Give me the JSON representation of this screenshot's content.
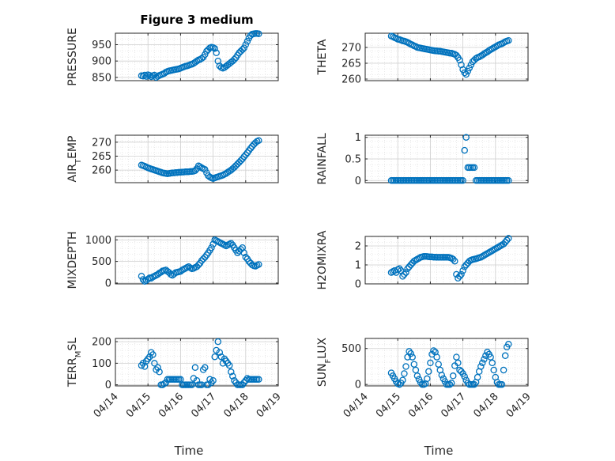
{
  "figure": {
    "title": "Figure 3 medium",
    "marker_color": "#0072bd",
    "x_tick_labels": [
      "04/14",
      "04/15",
      "04/16",
      "04/17",
      "04/18",
      "04/19"
    ]
  },
  "chart_data": [
    {
      "type": "scatter",
      "ylabel": "PRESSURE",
      "xlim": [
        0,
        5
      ],
      "ylim": [
        840,
        985
      ],
      "yticks": [
        850,
        900,
        950
      ],
      "grid": true,
      "x": [
        0.8,
        0.85,
        0.9,
        0.95,
        1.0,
        1.05,
        1.1,
        1.15,
        1.2,
        1.25,
        1.3,
        1.35,
        1.4,
        1.45,
        1.5,
        1.55,
        1.6,
        1.65,
        1.7,
        1.75,
        1.8,
        1.85,
        1.9,
        1.95,
        2.0,
        2.05,
        2.1,
        2.15,
        2.2,
        2.25,
        2.3,
        2.35,
        2.4,
        2.45,
        2.5,
        2.55,
        2.6,
        2.65,
        2.7,
        2.75,
        2.8,
        2.85,
        2.9,
        2.95,
        3.0,
        3.05,
        3.1,
        3.15,
        3.2,
        3.25,
        3.3,
        3.35,
        3.4,
        3.45,
        3.5,
        3.55,
        3.6,
        3.65,
        3.7,
        3.75,
        3.8,
        3.85,
        3.9,
        3.95,
        4.0,
        4.05,
        4.1,
        4.15,
        4.2,
        4.25,
        4.3,
        4.35,
        4.4
      ],
      "y": [
        855,
        854,
        857,
        853,
        858,
        856,
        852,
        855,
        857,
        850,
        853,
        856,
        858,
        860,
        862,
        866,
        868,
        870,
        871,
        872,
        873,
        874,
        875,
        876,
        878,
        880,
        882,
        884,
        885,
        887,
        889,
        890,
        893,
        896,
        900,
        903,
        905,
        908,
        912,
        920,
        930,
        935,
        940,
        942,
        941,
        938,
        925,
        900,
        885,
        880,
        878,
        880,
        884,
        888,
        892,
        896,
        900,
        905,
        910,
        918,
        925,
        930,
        935,
        940,
        950,
        960,
        970,
        978,
        982,
        983,
        984,
        984,
        983
      ]
    },
    {
      "type": "scatter",
      "ylabel": "THETA",
      "xlim": [
        0,
        5
      ],
      "ylim": [
        259.5,
        274.5
      ],
      "yticks": [
        260,
        265,
        270
      ],
      "grid": true,
      "x": [
        0.8,
        0.85,
        0.9,
        0.95,
        1.0,
        1.05,
        1.1,
        1.15,
        1.2,
        1.25,
        1.3,
        1.35,
        1.4,
        1.45,
        1.5,
        1.55,
        1.6,
        1.65,
        1.7,
        1.75,
        1.8,
        1.85,
        1.9,
        1.95,
        2.0,
        2.05,
        2.1,
        2.15,
        2.2,
        2.25,
        2.3,
        2.35,
        2.4,
        2.45,
        2.5,
        2.55,
        2.6,
        2.65,
        2.7,
        2.75,
        2.8,
        2.85,
        2.9,
        2.95,
        3.0,
        3.05,
        3.1,
        3.15,
        3.2,
        3.25,
        3.3,
        3.35,
        3.4,
        3.45,
        3.5,
        3.55,
        3.6,
        3.65,
        3.7,
        3.75,
        3.8,
        3.85,
        3.9,
        3.95,
        4.0,
        4.05,
        4.1,
        4.15,
        4.2,
        4.25,
        4.3,
        4.35,
        4.4
      ],
      "y": [
        273.6,
        273.4,
        273.1,
        272.9,
        272.6,
        272.5,
        272.3,
        272.1,
        272.0,
        271.8,
        271.6,
        271.3,
        271.0,
        270.8,
        270.5,
        270.3,
        270.0,
        269.9,
        269.8,
        269.7,
        269.6,
        269.5,
        269.4,
        269.3,
        269.2,
        269.1,
        269.0,
        268.9,
        268.9,
        268.8,
        268.8,
        268.7,
        268.6,
        268.5,
        268.4,
        268.3,
        268.2,
        268.2,
        268.0,
        267.8,
        267.5,
        266.8,
        266.0,
        264.5,
        263.0,
        262.0,
        261.5,
        262.5,
        263.5,
        264.5,
        265.5,
        266.0,
        266.5,
        266.8,
        267.0,
        267.3,
        267.6,
        268.0,
        268.3,
        268.6,
        269.0,
        269.3,
        269.6,
        269.9,
        270.2,
        270.5,
        270.8,
        271.0,
        271.2,
        271.5,
        271.8,
        272.0,
        272.2
      ]
    },
    {
      "type": "scatter",
      "ylabel": "AIR_TEMP",
      "xlim": [
        0,
        5
      ],
      "ylim": [
        255.5,
        272.5
      ],
      "yticks": [
        260,
        265,
        270
      ],
      "grid": true,
      "x": [
        0.8,
        0.85,
        0.9,
        0.95,
        1.0,
        1.05,
        1.1,
        1.15,
        1.2,
        1.25,
        1.3,
        1.35,
        1.4,
        1.45,
        1.5,
        1.55,
        1.6,
        1.65,
        1.7,
        1.75,
        1.8,
        1.85,
        1.9,
        1.95,
        2.0,
        2.05,
        2.1,
        2.15,
        2.2,
        2.25,
        2.3,
        2.35,
        2.4,
        2.45,
        2.5,
        2.55,
        2.6,
        2.65,
        2.7,
        2.75,
        2.8,
        2.85,
        2.9,
        2.95,
        3.0,
        3.05,
        3.1,
        3.15,
        3.2,
        3.25,
        3.3,
        3.35,
        3.4,
        3.45,
        3.5,
        3.55,
        3.6,
        3.65,
        3.7,
        3.75,
        3.8,
        3.85,
        3.9,
        3.95,
        4.0,
        4.05,
        4.1,
        4.15,
        4.2,
        4.25,
        4.3,
        4.35,
        4.4
      ],
      "y": [
        261.8,
        261.6,
        261.4,
        261.1,
        260.8,
        260.6,
        260.4,
        260.2,
        260.0,
        259.8,
        259.6,
        259.4,
        259.2,
        259.0,
        258.9,
        258.8,
        258.7,
        258.8,
        258.9,
        259.0,
        259.0,
        259.1,
        259.1,
        259.2,
        259.2,
        259.3,
        259.3,
        259.4,
        259.4,
        259.4,
        259.5,
        259.5,
        259.6,
        259.8,
        260.5,
        261.5,
        261.2,
        260.8,
        260.5,
        260.2,
        259.0,
        258.0,
        257.5,
        257.2,
        257.0,
        257.2,
        257.4,
        257.6,
        257.8,
        258.0,
        258.2,
        258.5,
        258.8,
        259.2,
        259.6,
        260.0,
        260.5,
        261.0,
        261.6,
        262.2,
        262.8,
        263.4,
        264.0,
        264.8,
        265.5,
        266.2,
        267.0,
        267.8,
        268.5,
        269.2,
        269.8,
        270.3,
        270.6
      ]
    },
    {
      "type": "scatter",
      "ylabel": "RAINFALL",
      "xlim": [
        0,
        5
      ],
      "ylim": [
        -0.05,
        1.05
      ],
      "yticks": [
        0,
        0.5,
        1
      ],
      "ytick_labels": [
        "0",
        "0.5",
        "1"
      ],
      "grid": true,
      "x": [
        0.8,
        0.85,
        0.9,
        0.95,
        1.0,
        1.05,
        1.1,
        1.15,
        1.2,
        1.25,
        1.3,
        1.35,
        1.4,
        1.45,
        1.5,
        1.55,
        1.6,
        1.65,
        1.7,
        1.75,
        1.8,
        1.85,
        1.9,
        1.95,
        2.0,
        2.05,
        2.1,
        2.15,
        2.2,
        2.25,
        2.3,
        2.35,
        2.4,
        2.45,
        2.5,
        2.55,
        2.6,
        2.65,
        2.7,
        2.75,
        2.8,
        2.85,
        2.9,
        2.95,
        3.0,
        3.05,
        3.1,
        3.15,
        3.2,
        3.25,
        3.3,
        3.35,
        3.4,
        3.45,
        3.5,
        3.55,
        3.6,
        3.65,
        3.7,
        3.75,
        3.8,
        3.85,
        3.9,
        3.95,
        4.0,
        4.05,
        4.1,
        4.15,
        4.2,
        4.25,
        4.3,
        4.35,
        4.4
      ],
      "y": [
        0,
        0,
        0,
        0,
        0,
        0,
        0,
        0,
        0,
        0,
        0,
        0,
        0,
        0,
        0,
        0,
        0,
        0,
        0,
        0,
        0,
        0,
        0,
        0,
        0,
        0,
        0,
        0,
        0,
        0,
        0,
        0,
        0,
        0,
        0,
        0,
        0,
        0,
        0,
        0,
        0,
        0,
        0,
        0,
        0,
        0.7,
        1.0,
        0.3,
        0.3,
        0.3,
        0.3,
        0.3,
        0,
        0,
        0,
        0,
        0,
        0,
        0,
        0,
        0,
        0,
        0,
        0,
        0,
        0,
        0,
        0,
        0,
        0,
        0,
        0,
        0
      ]
    },
    {
      "type": "scatter",
      "ylabel": "MIXDEPTH",
      "xlim": [
        0,
        5
      ],
      "ylim": [
        -20,
        1080
      ],
      "yticks": [
        0,
        500,
        1000
      ],
      "grid": true,
      "x": [
        0.8,
        0.85,
        0.9,
        0.95,
        1.0,
        1.05,
        1.1,
        1.15,
        1.2,
        1.25,
        1.3,
        1.35,
        1.4,
        1.45,
        1.5,
        1.55,
        1.6,
        1.65,
        1.7,
        1.75,
        1.8,
        1.85,
        1.9,
        1.95,
        2.0,
        2.05,
        2.1,
        2.15,
        2.2,
        2.25,
        2.3,
        2.35,
        2.4,
        2.45,
        2.5,
        2.55,
        2.6,
        2.65,
        2.7,
        2.75,
        2.8,
        2.85,
        2.9,
        2.95,
        3.0,
        3.05,
        3.1,
        3.15,
        3.2,
        3.25,
        3.3,
        3.35,
        3.4,
        3.45,
        3.5,
        3.55,
        3.6,
        3.65,
        3.7,
        3.75,
        3.8,
        3.85,
        3.9,
        3.95,
        4.0,
        4.05,
        4.1,
        4.15,
        4.2,
        4.25,
        4.3,
        4.35,
        4.4
      ],
      "y": [
        160,
        80,
        40,
        60,
        90,
        120,
        110,
        140,
        160,
        180,
        200,
        230,
        250,
        280,
        290,
        300,
        270,
        240,
        200,
        180,
        210,
        240,
        250,
        260,
        270,
        300,
        320,
        340,
        360,
        380,
        350,
        330,
        340,
        360,
        380,
        420,
        460,
        520,
        560,
        600,
        650,
        700,
        760,
        820,
        900,
        1000,
        980,
        960,
        940,
        920,
        900,
        880,
        860,
        880,
        900,
        920,
        880,
        820,
        760,
        700,
        740,
        780,
        820,
        700,
        600,
        560,
        500,
        460,
        420,
        400,
        390,
        410,
        430
      ]
    },
    {
      "type": "scatter",
      "ylabel": "H2OMIXRA",
      "xlim": [
        0,
        5
      ],
      "ylim": [
        0,
        2.5
      ],
      "yticks": [
        0,
        1,
        2
      ],
      "grid": true,
      "x": [
        0.8,
        0.85,
        0.9,
        0.95,
        1.0,
        1.05,
        1.1,
        1.15,
        1.2,
        1.25,
        1.3,
        1.35,
        1.4,
        1.45,
        1.5,
        1.55,
        1.6,
        1.65,
        1.7,
        1.75,
        1.8,
        1.85,
        1.9,
        1.95,
        2.0,
        2.05,
        2.1,
        2.15,
        2.2,
        2.25,
        2.3,
        2.35,
        2.4,
        2.45,
        2.5,
        2.55,
        2.6,
        2.65,
        2.7,
        2.75,
        2.8,
        2.85,
        2.9,
        2.95,
        3.0,
        3.05,
        3.1,
        3.15,
        3.2,
        3.25,
        3.3,
        3.35,
        3.4,
        3.45,
        3.5,
        3.55,
        3.6,
        3.65,
        3.7,
        3.75,
        3.8,
        3.85,
        3.9,
        3.95,
        4.0,
        4.05,
        4.1,
        4.15,
        4.2,
        4.25,
        4.3,
        4.35,
        4.4
      ],
      "y": [
        0.6,
        0.65,
        0.7,
        0.6,
        0.75,
        0.8,
        0.7,
        0.4,
        0.5,
        0.6,
        0.8,
        0.9,
        1.0,
        1.1,
        1.2,
        1.25,
        1.3,
        1.35,
        1.4,
        1.42,
        1.45,
        1.45,
        1.44,
        1.43,
        1.42,
        1.42,
        1.41,
        1.41,
        1.4,
        1.4,
        1.4,
        1.4,
        1.4,
        1.4,
        1.4,
        1.4,
        1.38,
        1.35,
        1.3,
        1.2,
        0.5,
        0.3,
        0.4,
        0.5,
        0.7,
        0.9,
        1.0,
        1.1,
        1.2,
        1.25,
        1.28,
        1.3,
        1.32,
        1.35,
        1.38,
        1.4,
        1.45,
        1.5,
        1.55,
        1.6,
        1.65,
        1.7,
        1.75,
        1.8,
        1.85,
        1.9,
        1.95,
        2.0,
        2.05,
        2.1,
        2.2,
        2.3,
        2.4
      ]
    },
    {
      "type": "scatter",
      "ylabel": "TERR_MSL",
      "xlim": [
        0,
        5
      ],
      "ylim": [
        -5,
        215
      ],
      "yticks": [
        0,
        100,
        200
      ],
      "grid": true,
      "x": [
        0.8,
        0.85,
        0.9,
        0.95,
        1.0,
        1.05,
        1.1,
        1.15,
        1.2,
        1.25,
        1.3,
        1.35,
        1.4,
        1.45,
        1.5,
        1.55,
        1.6,
        1.65,
        1.7,
        1.75,
        1.8,
        1.85,
        1.9,
        1.95,
        2.0,
        2.05,
        2.1,
        2.15,
        2.2,
        2.25,
        2.3,
        2.35,
        2.4,
        2.45,
        2.5,
        2.55,
        2.6,
        2.65,
        2.7,
        2.75,
        2.8,
        2.85,
        2.9,
        2.95,
        3.0,
        3.05,
        3.1,
        3.15,
        3.2,
        3.25,
        3.3,
        3.35,
        3.4,
        3.45,
        3.5,
        3.55,
        3.6,
        3.65,
        3.7,
        3.75,
        3.8,
        3.85,
        3.9,
        3.95,
        4.0,
        4.05,
        4.1,
        4.15,
        4.2,
        4.25,
        4.3,
        4.35,
        4.4
      ],
      "y": [
        90,
        100,
        85,
        110,
        120,
        130,
        150,
        140,
        100,
        70,
        80,
        60,
        0,
        0,
        5,
        10,
        25,
        25,
        25,
        25,
        25,
        25,
        25,
        25,
        25,
        0,
        0,
        0,
        0,
        0,
        0,
        0,
        30,
        80,
        20,
        0,
        0,
        0,
        70,
        80,
        0,
        0,
        25,
        10,
        20,
        130,
        160,
        200,
        150,
        130,
        100,
        120,
        110,
        100,
        90,
        60,
        40,
        20,
        10,
        0,
        0,
        0,
        0,
        10,
        20,
        30,
        25,
        25,
        25,
        25,
        25,
        25,
        25
      ]
    },
    {
      "type": "scatter",
      "ylabel": "SUN_FLUX",
      "xlim": [
        0,
        5
      ],
      "ylim": [
        -20,
        640
      ],
      "yticks": [
        0,
        500
      ],
      "grid": true,
      "x": [
        0.8,
        0.85,
        0.9,
        0.95,
        1.0,
        1.05,
        1.1,
        1.15,
        1.2,
        1.25,
        1.3,
        1.35,
        1.4,
        1.45,
        1.5,
        1.55,
        1.6,
        1.65,
        1.7,
        1.75,
        1.8,
        1.85,
        1.9,
        1.95,
        2.0,
        2.05,
        2.1,
        2.15,
        2.2,
        2.25,
        2.3,
        2.35,
        2.4,
        2.45,
        2.5,
        2.55,
        2.6,
        2.65,
        2.7,
        2.75,
        2.8,
        2.85,
        2.9,
        2.95,
        3.0,
        3.05,
        3.1,
        3.15,
        3.2,
        3.25,
        3.3,
        3.35,
        3.4,
        3.45,
        3.5,
        3.55,
        3.6,
        3.65,
        3.7,
        3.75,
        3.8,
        3.85,
        3.9,
        3.95,
        4.0,
        4.05,
        4.1,
        4.15,
        4.2,
        4.25,
        4.3,
        4.35,
        4.4
      ],
      "y": [
        160,
        120,
        80,
        40,
        10,
        0,
        20,
        60,
        150,
        250,
        380,
        460,
        430,
        380,
        280,
        200,
        120,
        70,
        30,
        0,
        0,
        10,
        80,
        180,
        300,
        420,
        470,
        450,
        380,
        280,
        200,
        130,
        80,
        40,
        0,
        0,
        0,
        20,
        120,
        260,
        380,
        300,
        200,
        180,
        150,
        110,
        60,
        20,
        0,
        0,
        0,
        0,
        30,
        100,
        180,
        250,
        300,
        350,
        400,
        450,
        420,
        380,
        300,
        200,
        100,
        30,
        0,
        0,
        0,
        200,
        400,
        520,
        560
      ]
    }
  ]
}
